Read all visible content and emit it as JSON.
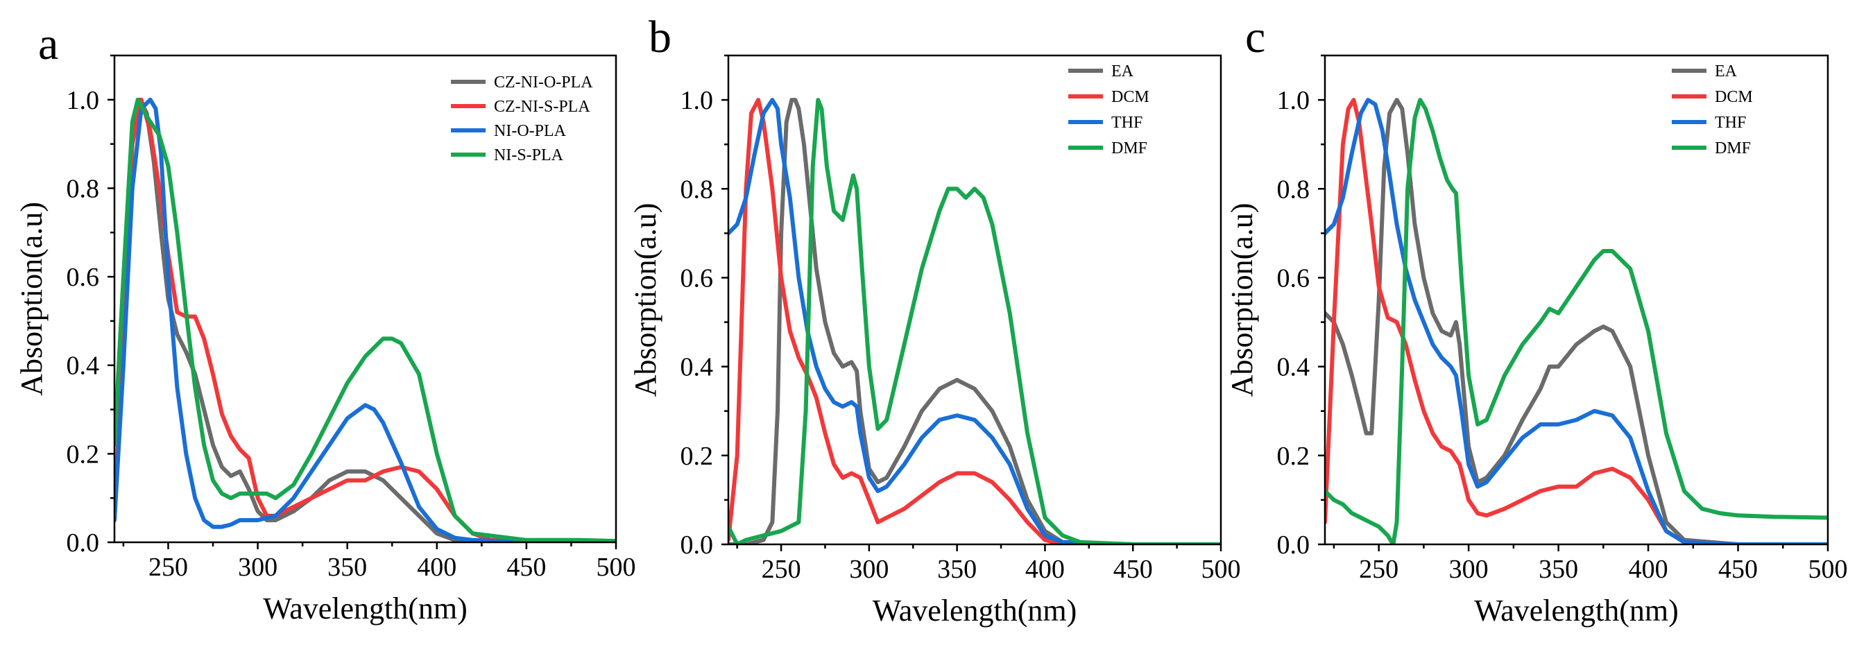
{
  "colors": {
    "gray": "#6b6b6b",
    "red": "#f2383a",
    "blue": "#1a6fd6",
    "green": "#18a64f"
  },
  "chart_data": [
    {
      "type": "line",
      "panel_label": "a",
      "xlabel": "Wavelength(nm)",
      "ylabel": "Absorption(a.u)",
      "xlim": [
        220,
        500
      ],
      "ylim": [
        0,
        1.1
      ],
      "xticks": [
        250,
        300,
        350,
        400,
        450,
        500
      ],
      "yticks": [
        0.0,
        0.2,
        0.4,
        0.6,
        0.8,
        1.0
      ],
      "legend_position": "top-right",
      "series": [
        {
          "name": "CZ-NI-O-PLA",
          "color": "#6b6b6b",
          "x": [
            220,
            225,
            230,
            234,
            238,
            242,
            246,
            250,
            255,
            260,
            265,
            270,
            275,
            280,
            285,
            290,
            295,
            300,
            305,
            310,
            320,
            330,
            340,
            350,
            360,
            370,
            380,
            390,
            400,
            410,
            420,
            450,
            500
          ],
          "y": [
            0.05,
            0.5,
            0.92,
            1.0,
            0.97,
            0.86,
            0.7,
            0.55,
            0.47,
            0.43,
            0.38,
            0.3,
            0.22,
            0.17,
            0.15,
            0.16,
            0.12,
            0.07,
            0.05,
            0.05,
            0.07,
            0.1,
            0.14,
            0.16,
            0.16,
            0.14,
            0.1,
            0.06,
            0.02,
            0.005,
            0.0,
            0.0,
            0.0
          ]
        },
        {
          "name": "CZ-NI-S-PLA",
          "color": "#f2383a",
          "x": [
            220,
            225,
            230,
            235,
            240,
            245,
            250,
            255,
            260,
            265,
            270,
            275,
            280,
            285,
            290,
            295,
            300,
            305,
            310,
            320,
            330,
            340,
            350,
            360,
            370,
            380,
            390,
            400,
            410,
            420,
            430,
            450,
            500
          ],
          "y": [
            0.05,
            0.45,
            0.9,
            1.0,
            0.93,
            0.8,
            0.65,
            0.52,
            0.51,
            0.51,
            0.46,
            0.38,
            0.29,
            0.24,
            0.21,
            0.19,
            0.1,
            0.06,
            0.06,
            0.08,
            0.1,
            0.12,
            0.14,
            0.14,
            0.16,
            0.17,
            0.16,
            0.12,
            0.06,
            0.02,
            0.005,
            0.0,
            0.0
          ]
        },
        {
          "name": "NI-O-PLA",
          "color": "#1a6fd6",
          "x": [
            220,
            225,
            230,
            235,
            240,
            243,
            246,
            250,
            255,
            260,
            265,
            270,
            275,
            280,
            285,
            290,
            300,
            310,
            320,
            330,
            340,
            350,
            360,
            365,
            370,
            380,
            390,
            400,
            410,
            420,
            450,
            500
          ],
          "y": [
            0.05,
            0.4,
            0.8,
            0.98,
            1.0,
            0.98,
            0.88,
            0.6,
            0.35,
            0.2,
            0.1,
            0.05,
            0.035,
            0.035,
            0.04,
            0.05,
            0.05,
            0.06,
            0.1,
            0.16,
            0.22,
            0.28,
            0.31,
            0.3,
            0.27,
            0.18,
            0.08,
            0.03,
            0.01,
            0.005,
            0.0,
            0.0
          ]
        },
        {
          "name": "NI-S-PLA",
          "color": "#18a64f",
          "x": [
            220,
            225,
            230,
            233,
            237,
            240,
            245,
            250,
            255,
            260,
            265,
            270,
            275,
            280,
            285,
            290,
            300,
            305,
            310,
            320,
            330,
            340,
            350,
            360,
            370,
            375,
            380,
            390,
            400,
            410,
            420,
            450,
            480,
            500
          ],
          "y": [
            0.22,
            0.6,
            0.95,
            1.0,
            0.97,
            0.95,
            0.92,
            0.85,
            0.7,
            0.52,
            0.35,
            0.22,
            0.14,
            0.11,
            0.1,
            0.11,
            0.11,
            0.11,
            0.1,
            0.13,
            0.2,
            0.28,
            0.36,
            0.42,
            0.46,
            0.46,
            0.45,
            0.38,
            0.2,
            0.06,
            0.02,
            0.005,
            0.005,
            0.003
          ]
        }
      ]
    },
    {
      "type": "line",
      "panel_label": "b",
      "xlabel": "Wavelength(nm)",
      "ylabel": "Absorption(a.u)",
      "xlim": [
        220,
        500
      ],
      "ylim": [
        0,
        1.1
      ],
      "xticks": [
        250,
        300,
        350,
        400,
        450,
        500
      ],
      "yticks": [
        0.0,
        0.2,
        0.4,
        0.6,
        0.8,
        1.0
      ],
      "legend_position": "top-right",
      "series": [
        {
          "name": "EA",
          "color": "#6b6b6b",
          "x": [
            220,
            230,
            240,
            245,
            248,
            250,
            253,
            256,
            258,
            260,
            263,
            266,
            270,
            275,
            280,
            285,
            290,
            293,
            295,
            300,
            305,
            310,
            320,
            330,
            340,
            350,
            360,
            370,
            380,
            390,
            400,
            410,
            450,
            500
          ],
          "y": [
            0.0,
            0.0,
            0.01,
            0.05,
            0.3,
            0.7,
            0.95,
            1.0,
            1.0,
            0.98,
            0.9,
            0.78,
            0.62,
            0.5,
            0.43,
            0.4,
            0.41,
            0.39,
            0.3,
            0.17,
            0.14,
            0.15,
            0.22,
            0.3,
            0.35,
            0.37,
            0.35,
            0.3,
            0.22,
            0.1,
            0.03,
            0.005,
            0.0,
            0.0
          ]
        },
        {
          "name": "DCM",
          "color": "#f2383a",
          "x": [
            220,
            225,
            230,
            233,
            237,
            240,
            245,
            250,
            255,
            260,
            265,
            270,
            275,
            280,
            285,
            290,
            295,
            300,
            305,
            310,
            320,
            330,
            340,
            350,
            360,
            370,
            380,
            390,
            400,
            410,
            450,
            500
          ],
          "y": [
            0.01,
            0.2,
            0.8,
            0.97,
            1.0,
            0.95,
            0.8,
            0.6,
            0.48,
            0.42,
            0.38,
            0.33,
            0.25,
            0.18,
            0.15,
            0.16,
            0.15,
            0.1,
            0.05,
            0.06,
            0.08,
            0.11,
            0.14,
            0.16,
            0.16,
            0.14,
            0.1,
            0.05,
            0.01,
            0.0,
            0.0,
            0.0
          ]
        },
        {
          "name": "THF",
          "color": "#1a6fd6",
          "x": [
            220,
            225,
            230,
            235,
            240,
            245,
            248,
            250,
            255,
            260,
            265,
            270,
            275,
            280,
            285,
            290,
            293,
            295,
            300,
            305,
            310,
            320,
            330,
            340,
            350,
            360,
            370,
            380,
            390,
            400,
            410,
            450,
            500
          ],
          "y": [
            0.7,
            0.72,
            0.78,
            0.88,
            0.97,
            1.0,
            0.98,
            0.9,
            0.78,
            0.6,
            0.48,
            0.4,
            0.35,
            0.32,
            0.31,
            0.32,
            0.31,
            0.25,
            0.15,
            0.12,
            0.13,
            0.18,
            0.24,
            0.28,
            0.29,
            0.28,
            0.24,
            0.18,
            0.08,
            0.02,
            0.005,
            0.0,
            0.0
          ]
        },
        {
          "name": "DMF",
          "color": "#18a64f",
          "x": [
            220,
            225,
            230,
            240,
            250,
            260,
            264,
            268,
            271,
            273,
            276,
            280,
            285,
            288,
            291,
            293,
            296,
            300,
            305,
            310,
            320,
            330,
            340,
            345,
            350,
            355,
            360,
            365,
            370,
            380,
            390,
            400,
            410,
            420,
            450,
            500
          ],
          "y": [
            0.04,
            0.0,
            0.01,
            0.02,
            0.03,
            0.05,
            0.3,
            0.85,
            1.0,
            0.98,
            0.85,
            0.75,
            0.73,
            0.78,
            0.83,
            0.8,
            0.62,
            0.4,
            0.26,
            0.28,
            0.45,
            0.62,
            0.75,
            0.8,
            0.8,
            0.78,
            0.8,
            0.78,
            0.72,
            0.52,
            0.25,
            0.06,
            0.02,
            0.005,
            0.0,
            0.0
          ]
        }
      ]
    },
    {
      "type": "line",
      "panel_label": "c",
      "xlabel": "Wavelength(nm)",
      "ylabel": "Absorption(a.u)",
      "xlim": [
        220,
        500
      ],
      "ylim": [
        0,
        1.1
      ],
      "xticks": [
        250,
        300,
        350,
        400,
        450,
        500
      ],
      "yticks": [
        0.0,
        0.2,
        0.4,
        0.6,
        0.8,
        1.0
      ],
      "legend_position": "top-right",
      "series": [
        {
          "name": "EA",
          "color": "#6b6b6b",
          "x": [
            220,
            225,
            230,
            235,
            240,
            243,
            246,
            250,
            253,
            256,
            260,
            263,
            266,
            270,
            275,
            280,
            285,
            290,
            293,
            295,
            300,
            305,
            310,
            320,
            330,
            340,
            345,
            350,
            360,
            370,
            375,
            380,
            390,
            400,
            410,
            420,
            450,
            500
          ],
          "y": [
            0.52,
            0.5,
            0.45,
            0.38,
            0.3,
            0.25,
            0.25,
            0.55,
            0.85,
            0.97,
            1.0,
            0.98,
            0.88,
            0.72,
            0.6,
            0.52,
            0.48,
            0.47,
            0.5,
            0.45,
            0.22,
            0.14,
            0.15,
            0.2,
            0.28,
            0.35,
            0.4,
            0.4,
            0.45,
            0.48,
            0.49,
            0.48,
            0.4,
            0.2,
            0.05,
            0.01,
            0.0,
            0.0
          ]
        },
        {
          "name": "DCM",
          "color": "#f2383a",
          "x": [
            220,
            225,
            230,
            233,
            236,
            239,
            242,
            246,
            250,
            255,
            260,
            265,
            270,
            275,
            280,
            285,
            290,
            295,
            300,
            305,
            310,
            320,
            330,
            340,
            350,
            360,
            370,
            380,
            390,
            400,
            410,
            420,
            450,
            500
          ],
          "y": [
            0.05,
            0.5,
            0.9,
            0.98,
            1.0,
            0.95,
            0.85,
            0.72,
            0.58,
            0.51,
            0.5,
            0.45,
            0.37,
            0.3,
            0.25,
            0.22,
            0.21,
            0.18,
            0.1,
            0.07,
            0.065,
            0.08,
            0.1,
            0.12,
            0.13,
            0.13,
            0.16,
            0.17,
            0.15,
            0.1,
            0.03,
            0.005,
            0.0,
            0.0
          ]
        },
        {
          "name": "THF",
          "color": "#1a6fd6",
          "x": [
            220,
            225,
            230,
            235,
            240,
            244,
            248,
            252,
            256,
            260,
            265,
            270,
            275,
            280,
            285,
            290,
            293,
            296,
            300,
            305,
            310,
            320,
            330,
            340,
            350,
            360,
            370,
            380,
            390,
            400,
            410,
            420,
            450,
            500
          ],
          "y": [
            0.7,
            0.72,
            0.78,
            0.88,
            0.97,
            1.0,
            0.99,
            0.93,
            0.83,
            0.72,
            0.62,
            0.55,
            0.5,
            0.45,
            0.42,
            0.4,
            0.38,
            0.3,
            0.18,
            0.13,
            0.14,
            0.19,
            0.24,
            0.27,
            0.27,
            0.28,
            0.3,
            0.29,
            0.24,
            0.12,
            0.03,
            0.005,
            0.0,
            0.0
          ]
        },
        {
          "name": "DMF",
          "color": "#18a64f",
          "x": [
            220,
            225,
            230,
            235,
            240,
            245,
            250,
            255,
            258,
            260,
            263,
            266,
            270,
            273,
            276,
            280,
            284,
            288,
            291,
            293,
            296,
            300,
            305,
            310,
            320,
            330,
            340,
            345,
            350,
            355,
            360,
            370,
            375,
            380,
            390,
            400,
            410,
            420,
            430,
            440,
            450,
            470,
            500
          ],
          "y": [
            0.12,
            0.1,
            0.09,
            0.07,
            0.06,
            0.05,
            0.04,
            0.02,
            0.0,
            0.05,
            0.4,
            0.8,
            0.96,
            1.0,
            0.98,
            0.93,
            0.87,
            0.82,
            0.8,
            0.79,
            0.6,
            0.38,
            0.27,
            0.28,
            0.38,
            0.45,
            0.5,
            0.53,
            0.52,
            0.55,
            0.58,
            0.64,
            0.66,
            0.66,
            0.62,
            0.48,
            0.25,
            0.12,
            0.08,
            0.07,
            0.065,
            0.062,
            0.06
          ]
        }
      ]
    }
  ]
}
